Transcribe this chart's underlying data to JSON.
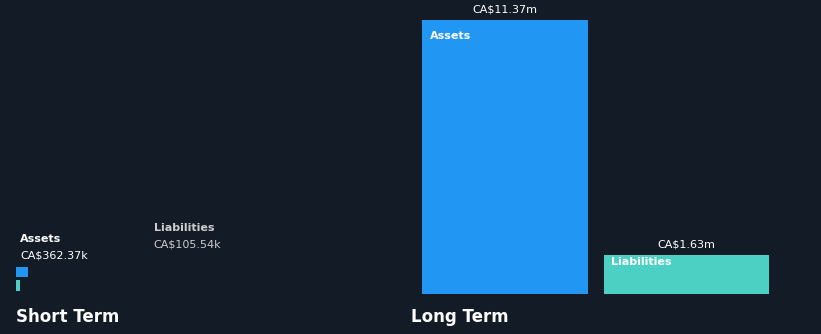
{
  "background_color": "#131b27",
  "short_term": {
    "assets_label": "Assets",
    "assets_value_label": "CA$362.37k",
    "assets_value": 362.37,
    "liabilities_label": "Liabilities",
    "liabilities_value_label": "CA$105.54k",
    "liabilities_value": 105.54,
    "color_assets": "#2196f3",
    "color_liabilities": "#4dd0c4",
    "section_label": "Short Term",
    "max_scale": 11370
  },
  "long_term": {
    "assets_label": "Assets",
    "assets_value_label": "CA$11.37m",
    "assets_value": 11370,
    "liabilities_label": "Liabilities",
    "liabilities_value_label": "CA$1.63m",
    "liabilities_value": 1630,
    "color_assets": "#2196f3",
    "color_liabilities": "#4dd0c4",
    "section_label": "Long Term",
    "max_scale": 11370
  },
  "text_color": "#ffffff",
  "label_color": "#cccccc",
  "bar_height": 0.18,
  "thin_bar_height": 0.035
}
